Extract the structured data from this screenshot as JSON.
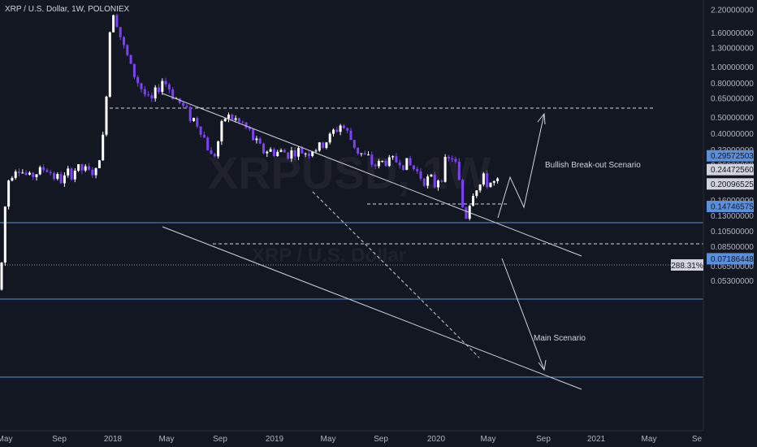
{
  "header": {
    "title": "XRP / U.S. Dollar, 1W, POLONIEX"
  },
  "watermark": {
    "line1": "XRPUSD, 1W",
    "line2": "XRP / U.S. Dollar"
  },
  "annotations": {
    "bullish": "Bullish Break-out Scenario",
    "main": "Main Scenario"
  },
  "chart_data": {
    "type": "candlestick",
    "title": "XRP / U.S. Dollar, 1W, POLONIEX",
    "yscale": "log",
    "ylim": [
      0.046,
      2.35
    ],
    "y_ticks": [
      "2.20000000",
      "1.60000000",
      "1.30000000",
      "1.00000000",
      "0.80000000",
      "0.65000000",
      "0.50000000",
      "0.40000000",
      "0.32000000",
      "0.26000000",
      "0.16000000",
      "0.13000000",
      "0.10500000",
      "0.08500000",
      "0.06500000",
      "0.05300000"
    ],
    "x_ticks": [
      "May",
      "Sep",
      "2018",
      "May",
      "Sep",
      "2019",
      "May",
      "Sep",
      "2020",
      "May",
      "Sep",
      "2021",
      "May",
      "Se"
    ],
    "price_tags": [
      {
        "label": "0.29572503",
        "kind": "level"
      },
      {
        "label": "0.24472560",
        "kind": "dashed-level"
      },
      {
        "label": "0.20096525",
        "kind": "current"
      },
      {
        "label": "0.14746575",
        "kind": "level"
      },
      {
        "label": "0.07186448",
        "kind": "level"
      }
    ],
    "current_change": "288.31%",
    "colors": {
      "up": "#ffffff",
      "down": "#7b42f6",
      "level": "#5b8fd9",
      "background": "#131722"
    }
  }
}
